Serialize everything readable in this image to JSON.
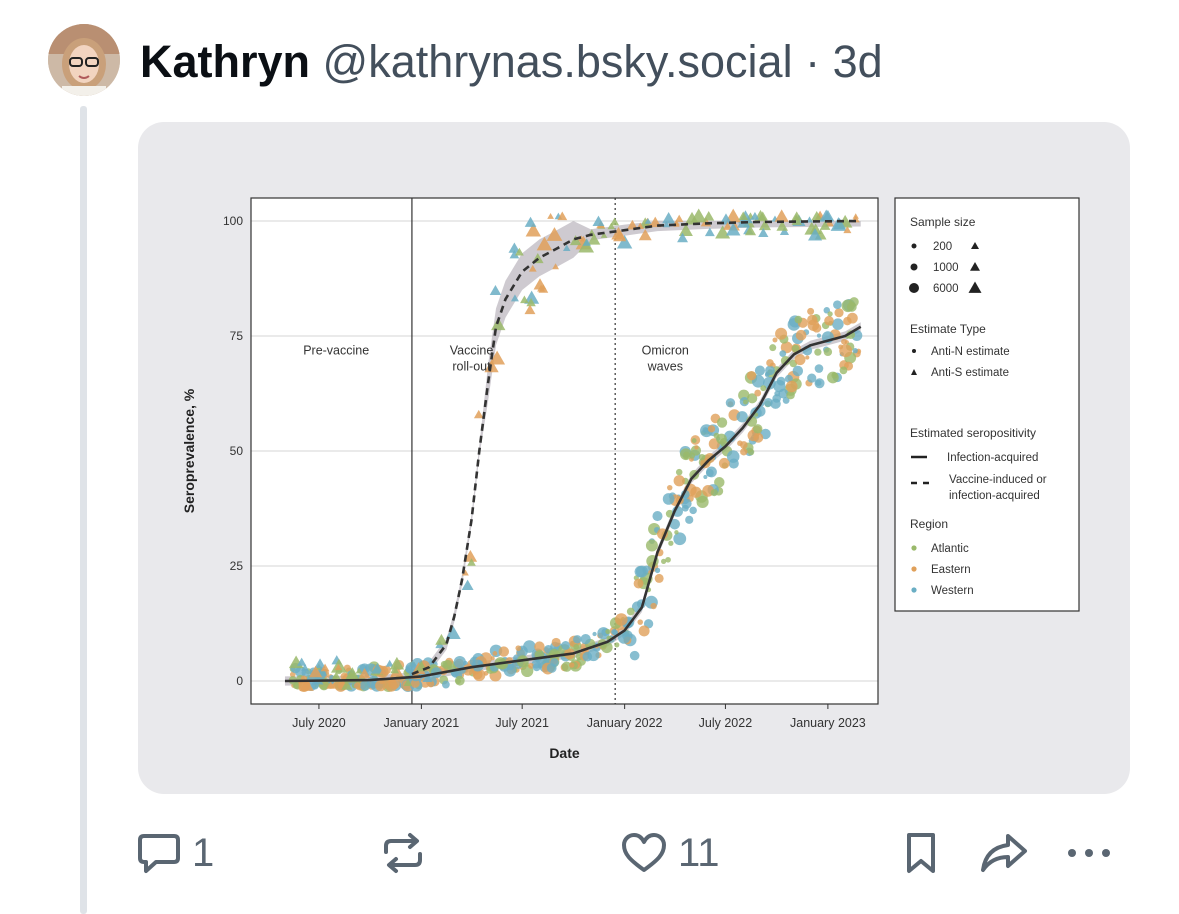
{
  "post": {
    "author_name": "Kathryn",
    "handle": "@kathrynas.bsky.social",
    "separator": "·",
    "age": "3d"
  },
  "actions": {
    "reply_icon": "speech-bubble-icon",
    "reply_count": "1",
    "repost_icon": "repost-arrows-icon",
    "like_icon": "heart-icon",
    "like_count": "11",
    "bookmark_icon": "bookmark-icon",
    "share_icon": "share-arrow-icon",
    "more_icon": "ellipsis-icon"
  },
  "chart_data": {
    "type": "scatter",
    "xlabel": "Date",
    "ylabel": "Seroprevalence, %",
    "xlim": [
      "2020-03-01",
      "2023-04-01"
    ],
    "ylim": [
      -5,
      105
    ],
    "x_ticks": [
      {
        "date": "2020-07-01",
        "label": "July 2020"
      },
      {
        "date": "2021-01-01",
        "label": "January 2021"
      },
      {
        "date": "2021-07-01",
        "label": "July 2021"
      },
      {
        "date": "2022-01-01",
        "label": "January 2022"
      },
      {
        "date": "2022-07-01",
        "label": "July 2022"
      },
      {
        "date": "2023-01-01",
        "label": "January 2023"
      }
    ],
    "y_ticks": [
      0,
      25,
      50,
      75,
      100
    ],
    "grid": true,
    "period_markers": [
      {
        "date": "2020-12-15",
        "style": "solid"
      },
      {
        "date": "2021-12-15",
        "style": "dotted"
      }
    ],
    "period_labels": [
      {
        "text": "Pre-vaccine",
        "date": "2020-08-01",
        "y": 71
      },
      {
        "text": "Vaccine\nroll-out",
        "date": "2021-04-01",
        "y": 71
      },
      {
        "text": "Omicron\nwaves",
        "date": "2022-03-15",
        "y": 71
      }
    ],
    "colors": {
      "Atlantic": "#9ab96a",
      "Eastern": "#e0a05a",
      "Western": "#6aaec4",
      "line": "#333333",
      "ribbon": "#b9b4bc"
    },
    "series": [
      {
        "name": "Infection-acquired",
        "style": "solid",
        "x": [
          "2020-05-01",
          "2020-10-01",
          "2021-01-01",
          "2021-04-01",
          "2021-07-01",
          "2021-10-01",
          "2021-12-01",
          "2022-01-01",
          "2022-02-01",
          "2022-03-01",
          "2022-04-01",
          "2022-05-01",
          "2022-06-01",
          "2022-07-01",
          "2022-08-01",
          "2022-09-01",
          "2022-10-01",
          "2022-11-01",
          "2022-12-01",
          "2023-01-01",
          "2023-02-01",
          "2023-03-01"
        ],
        "y": [
          0,
          0.2,
          1,
          3,
          4.5,
          6,
          8.5,
          11,
          16,
          28,
          37,
          44,
          48,
          51,
          55,
          60,
          67,
          71,
          73,
          74,
          75,
          77
        ]
      },
      {
        "name": "Vaccine-induced or infection-acquired",
        "style": "dashed",
        "x": [
          "2020-12-15",
          "2021-01-15",
          "2021-02-15",
          "2021-03-01",
          "2021-03-15",
          "2021-04-01",
          "2021-04-15",
          "2021-05-01",
          "2021-05-15",
          "2021-06-01",
          "2021-07-01",
          "2021-08-01",
          "2021-09-01",
          "2021-10-01",
          "2021-11-01",
          "2021-12-01",
          "2022-01-01",
          "2022-03-01",
          "2022-06-01",
          "2022-09-01",
          "2022-12-01",
          "2023-03-01"
        ],
        "y": [
          1.5,
          3,
          8,
          14,
          22,
          35,
          50,
          65,
          77,
          83,
          89,
          92,
          94,
          96,
          97,
          97.5,
          98,
          99,
          99.5,
          99.8,
          99.9,
          100
        ]
      }
    ],
    "legend": {
      "position": "right",
      "sample_size_title": "Sample size",
      "sample_sizes": [
        "200",
        "1000",
        "6000"
      ],
      "estimate_type_title": "Estimate Type",
      "estimate_types": [
        "Anti-N estimate",
        "Anti-S estimate"
      ],
      "seropositivity_title": "Estimated seropositivity",
      "seropositivity": [
        "Infection-acquired",
        "Vaccine-induced or infection-acquired"
      ],
      "region_title": "Region",
      "regions": [
        "Atlantic",
        "Eastern",
        "Western"
      ]
    }
  }
}
